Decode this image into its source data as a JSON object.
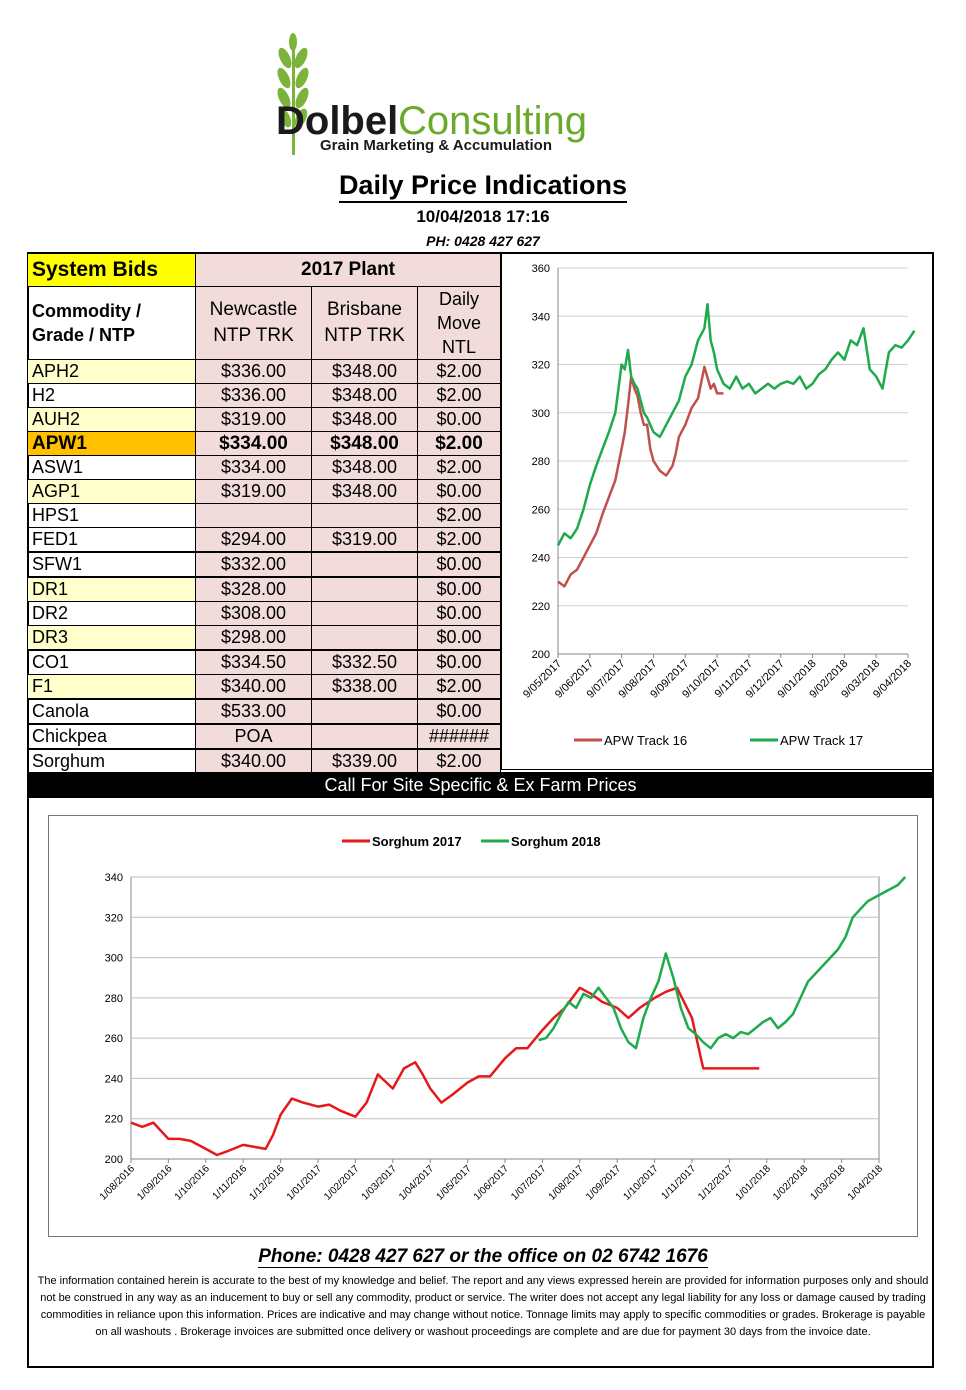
{
  "brand": {
    "name_part1": "Dolbel",
    "name_part2": "Consulting",
    "tagline": "Grain Marketing & Accumulation",
    "green": "#6aaa2a",
    "dark": "#1a1a1a"
  },
  "header": {
    "title": "Daily Price Indications",
    "datetime": "10/04/2018 17:16",
    "phone": "PH: 0428 427 627"
  },
  "bids_table": {
    "system_bids_label": "System Bids",
    "plant_label": "2017 Plant",
    "commodity_header": "Commodity / Grade / NTP",
    "col_newcastle": "Newcastle NTP TRK",
    "col_brisbane": "Brisbane NTP TRK",
    "col_daily": "Daily Move NTL",
    "rows": [
      {
        "grade": "APH2",
        "newcastle": "$336.00",
        "brisbane": "$348.00",
        "daily": "$2.00"
      },
      {
        "grade": "H2",
        "newcastle": "$336.00",
        "brisbane": "$348.00",
        "daily": "$2.00"
      },
      {
        "grade": "AUH2",
        "newcastle": "$319.00",
        "brisbane": "$348.00",
        "daily": "$0.00"
      },
      {
        "grade": "APW1",
        "newcastle": "$334.00",
        "brisbane": "$348.00",
        "daily": "$2.00"
      },
      {
        "grade": "ASW1",
        "newcastle": "$334.00",
        "brisbane": "$348.00",
        "daily": "$2.00"
      },
      {
        "grade": "AGP1",
        "newcastle": "$319.00",
        "brisbane": "$348.00",
        "daily": "$0.00"
      },
      {
        "grade": "HPS1",
        "newcastle": "",
        "brisbane": "",
        "daily": "$2.00"
      },
      {
        "grade": "FED1",
        "newcastle": "$294.00",
        "brisbane": "$319.00",
        "daily": "$2.00"
      },
      {
        "grade": "SFW1",
        "newcastle": "$332.00",
        "brisbane": "",
        "daily": "$0.00"
      },
      {
        "grade": "DR1",
        "newcastle": "$328.00",
        "brisbane": "",
        "daily": "$0.00"
      },
      {
        "grade": "DR2",
        "newcastle": "$308.00",
        "brisbane": "",
        "daily": "$0.00"
      },
      {
        "grade": "DR3",
        "newcastle": "$298.00",
        "brisbane": "",
        "daily": "$0.00"
      },
      {
        "grade": "CO1",
        "newcastle": "$334.50",
        "brisbane": "$332.50",
        "daily": "$0.00"
      },
      {
        "grade": "F1",
        "newcastle": "$340.00",
        "brisbane": "$338.00",
        "daily": "$2.00"
      },
      {
        "grade": "Canola",
        "newcastle": "$533.00",
        "brisbane": "",
        "daily": "$0.00"
      },
      {
        "grade": "Chickpea",
        "newcastle": "POA",
        "brisbane": "",
        "daily": "######"
      },
      {
        "grade": "Sorghum",
        "newcastle": "$340.00",
        "brisbane": "$339.00",
        "daily": "$2.00"
      }
    ]
  },
  "call_bar": "Call For Site Specific & Ex Farm Prices",
  "chart_data": [
    {
      "type": "line",
      "ylim": [
        200,
        360
      ],
      "yticks": [
        "200",
        "220",
        "240",
        "260",
        "280",
        "300",
        "320",
        "340",
        "360"
      ],
      "xticks": [
        "9/05/2017",
        "9/06/2017",
        "9/07/2017",
        "9/08/2017",
        "9/09/2017",
        "9/10/2017",
        "9/11/2017",
        "9/12/2017",
        "9/01/2018",
        "9/02/2018",
        "9/03/2018",
        "9/04/2018"
      ],
      "legend_position": "bottom",
      "series": [
        {
          "name": "APW Track 16",
          "color": "#c0504d",
          "x": [
            0,
            0.2,
            0.4,
            0.6,
            0.8,
            1.0,
            1.2,
            1.4,
            1.6,
            1.8,
            2.0,
            2.1,
            2.2,
            2.3,
            2.4,
            2.5,
            2.6,
            2.7,
            2.8,
            2.9,
            3.0,
            3.2,
            3.4,
            3.6,
            3.7,
            3.8,
            4.0,
            4.2,
            4.4,
            4.6,
            4.8,
            4.9,
            5.0,
            5.2
          ],
          "values": [
            230,
            228,
            233,
            235,
            240,
            245,
            250,
            258,
            265,
            272,
            285,
            292,
            303,
            315,
            310,
            307,
            300,
            295,
            295,
            285,
            280,
            276,
            274,
            278,
            283,
            290,
            295,
            302,
            306,
            319,
            310,
            312,
            308,
            308
          ]
        },
        {
          "name": "APW Track 17",
          "color": "#1faa4b",
          "x": [
            0,
            0.2,
            0.4,
            0.6,
            0.8,
            1.0,
            1.2,
            1.4,
            1.6,
            1.8,
            2.0,
            2.1,
            2.2,
            2.3,
            2.4,
            2.5,
            2.6,
            2.7,
            2.8,
            3.0,
            3.2,
            3.4,
            3.6,
            3.8,
            4.0,
            4.2,
            4.4,
            4.6,
            4.7,
            4.8,
            4.9,
            5.0,
            5.2,
            5.4,
            5.6,
            5.8,
            6.0,
            6.2,
            6.4,
            6.6,
            6.8,
            7.0,
            7.2,
            7.4,
            7.6,
            7.8,
            8.0,
            8.2,
            8.4,
            8.6,
            8.8,
            9.0,
            9.2,
            9.4,
            9.6,
            9.8,
            10.0,
            10.2,
            10.4,
            10.6,
            10.8,
            11.0,
            11.2
          ],
          "values": [
            245,
            250,
            248,
            252,
            260,
            270,
            278,
            285,
            292,
            300,
            320,
            318,
            326,
            315,
            312,
            310,
            305,
            300,
            298,
            292,
            290,
            295,
            300,
            305,
            315,
            320,
            330,
            335,
            345,
            330,
            325,
            318,
            312,
            310,
            315,
            310,
            312,
            308,
            310,
            312,
            310,
            312,
            313,
            312,
            315,
            310,
            312,
            316,
            318,
            322,
            325,
            322,
            330,
            328,
            335,
            318,
            315,
            310,
            325,
            328,
            327,
            330,
            334
          ]
        }
      ]
    },
    {
      "type": "line",
      "ylim": [
        200,
        340
      ],
      "yticks": [
        "200",
        "220",
        "240",
        "260",
        "280",
        "300",
        "320",
        "340"
      ],
      "xticks": [
        "1/08/2016",
        "1/09/2016",
        "1/10/2016",
        "1/11/2016",
        "1/12/2016",
        "1/01/2017",
        "1/02/2017",
        "1/03/2017",
        "1/04/2017",
        "1/05/2017",
        "1/06/2017",
        "1/07/2017",
        "1/08/2017",
        "1/09/2017",
        "1/10/2017",
        "1/11/2017",
        "1/12/2017",
        "1/01/2018",
        "1/02/2018",
        "1/03/2018",
        "1/04/2018"
      ],
      "legend_position": "top",
      "series": [
        {
          "name": "Sorghum 2017",
          "color": "#e31a1c",
          "x": [
            0,
            0.3,
            0.6,
            1.0,
            1.3,
            1.6,
            2.0,
            2.3,
            2.6,
            3.0,
            3.3,
            3.6,
            3.8,
            4.0,
            4.3,
            4.6,
            5.0,
            5.3,
            5.6,
            6.0,
            6.3,
            6.6,
            7.0,
            7.3,
            7.6,
            7.8,
            8.0,
            8.3,
            8.6,
            9.0,
            9.3,
            9.6,
            10.0,
            10.3,
            10.6,
            11.0,
            11.3,
            11.6,
            12.0,
            12.3,
            12.6,
            13.0,
            13.3,
            13.6,
            14.0,
            14.3,
            14.6,
            15.0,
            15.3,
            15.6,
            16.0,
            16.5,
            16.8
          ],
          "values": [
            218,
            216,
            218,
            210,
            210,
            209,
            205,
            202,
            204,
            207,
            206,
            205,
            212,
            222,
            230,
            228,
            226,
            227,
            224,
            221,
            228,
            242,
            235,
            245,
            248,
            242,
            235,
            228,
            232,
            238,
            241,
            241,
            250,
            255,
            255,
            264,
            270,
            275,
            285,
            282,
            278,
            275,
            270,
            275,
            280,
            283,
            285,
            270,
            245,
            245,
            245,
            245,
            245
          ]
        },
        {
          "name": "Sorghum 2018",
          "color": "#1faa4b",
          "x": [
            10.9,
            11.1,
            11.3,
            11.5,
            11.7,
            11.9,
            12.1,
            12.3,
            12.5,
            12.7,
            12.9,
            13.1,
            13.3,
            13.5,
            13.7,
            13.9,
            14.1,
            14.3,
            14.5,
            14.7,
            14.9,
            15.1,
            15.3,
            15.5,
            15.7,
            15.9,
            16.1,
            16.3,
            16.5,
            16.7,
            16.9,
            17.1,
            17.3,
            17.5,
            17.7,
            17.9,
            18.1,
            18.3,
            18.5,
            18.7,
            18.9,
            19.1,
            19.3,
            19.5,
            19.7,
            19.9,
            20.1,
            20.3,
            20.5,
            20.7
          ],
          "values": [
            259,
            260,
            265,
            272,
            278,
            275,
            282,
            280,
            285,
            280,
            275,
            265,
            258,
            255,
            270,
            280,
            288,
            302,
            290,
            275,
            265,
            262,
            258,
            255,
            260,
            262,
            260,
            263,
            262,
            265,
            268,
            270,
            265,
            268,
            272,
            280,
            288,
            292,
            296,
            300,
            304,
            310,
            320,
            324,
            328,
            330,
            332,
            334,
            336,
            340
          ]
        }
      ]
    }
  ],
  "footer": {
    "phone": "Phone: 0428 427 627 or the office on 02 6742 1676",
    "disclaimer": "The information contained herein is accurate to the best of my knowledge and belief.  The report and any views expressed herein are provided for information purposes only and should not be construed in any way as an inducement to buy or sell any commodity, product or service. The writer does not accept any legal liability for any loss or damage caused by trading commodities in reliance upon this information. Prices are indicative and may change without notice. Tonnage limits may apply to specific commodities or grades.  Brokerage is payable on all washouts . Brokerage invoices are submitted once delivery or washout proceedings are complete and are due for payment 30 days from the invoice date."
  }
}
